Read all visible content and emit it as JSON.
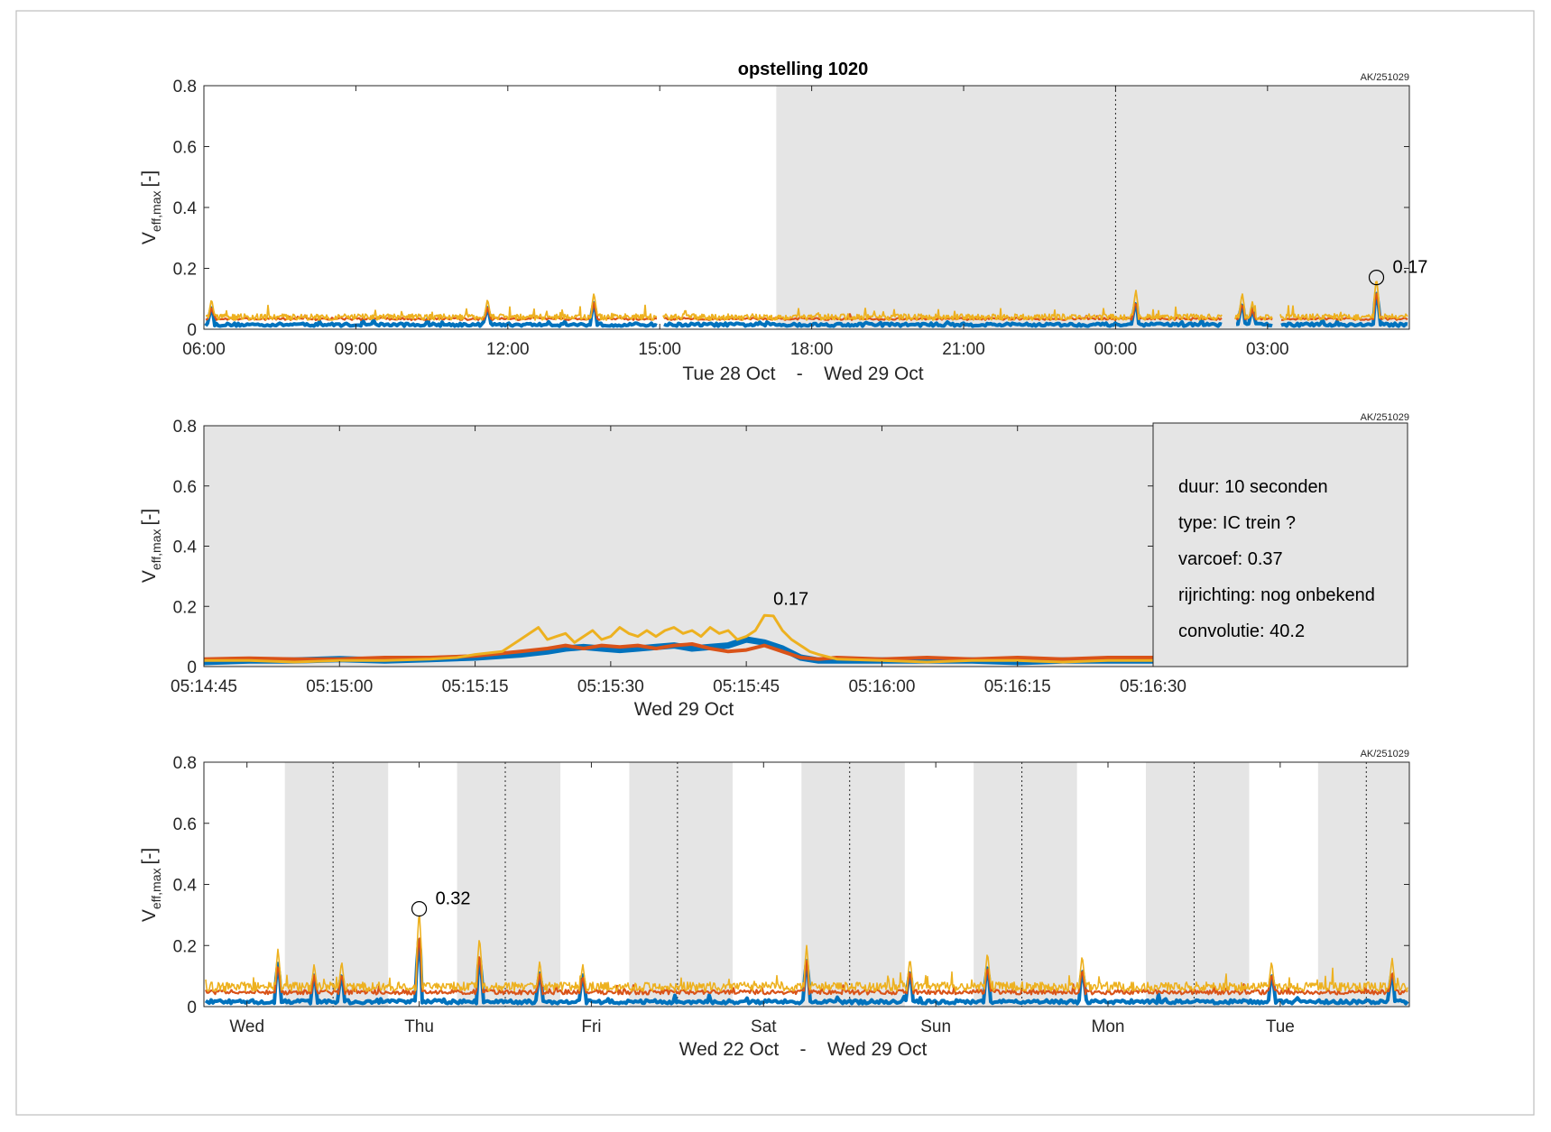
{
  "figure": {
    "title": "opstelling 1020",
    "ylabel_main": "V",
    "ylabel_sub": "eff,max",
    "ylabel_unit": "[-]",
    "colors": {
      "series1": "#0072BD",
      "series2": "#D95319",
      "series3": "#EDB120",
      "night": "#e5e5e5"
    }
  },
  "chart_data": [
    {
      "type": "line",
      "tag": "AK/251029",
      "xlabel": "Tue 28 Oct    -    Wed 29 Oct",
      "ylim": [
        0,
        0.8
      ],
      "y_ticks": [
        "0",
        "0.2",
        "0.4",
        "0.6",
        "0.8"
      ],
      "x_ticks": [
        "06:00",
        "09:00",
        "12:00",
        "15:00",
        "18:00",
        "21:00",
        "00:00",
        "03:00"
      ],
      "x_range_hours": [
        6.0,
        29.8
      ],
      "night_period_hours": [
        17.3,
        29.8
      ],
      "midnight_hours": [
        24.0
      ],
      "gaps_hours": [
        [
          14.95,
          15.05
        ],
        [
          26.1,
          26.35
        ],
        [
          27.1,
          27.25
        ]
      ],
      "baseline": {
        "series1": 0.01,
        "series2": 0.03,
        "series3": 0.03
      },
      "peaks": [
        {
          "x": 6.15,
          "y": 0.1
        },
        {
          "x": 11.6,
          "y": 0.1
        },
        {
          "x": 13.7,
          "y": 0.12
        },
        {
          "x": 24.4,
          "y": 0.13
        },
        {
          "x": 26.5,
          "y": 0.12
        },
        {
          "x": 26.7,
          "y": 0.09
        },
        {
          "x": 29.15,
          "y": 0.17
        }
      ],
      "marker": {
        "x": 29.15,
        "y": 0.17,
        "label": "0.17"
      }
    },
    {
      "type": "line",
      "tag": "AK/251029",
      "xlabel": "Wed 29 Oct",
      "ylim": [
        0,
        0.8
      ],
      "y_ticks": [
        "0",
        "0.2",
        "0.4",
        "0.6",
        "0.8"
      ],
      "x_ticks": [
        "05:14:45",
        "05:15:00",
        "05:15:15",
        "05:15:30",
        "05:15:45",
        "05:16:00",
        "05:16:15",
        "05:16:30"
      ],
      "x_range_seconds": [
        0,
        105
      ],
      "series": [
        {
          "name": "",
          "color": "series1",
          "x": [
            0,
            5,
            10,
            15,
            20,
            25,
            30,
            35,
            38,
            40,
            42,
            44,
            46,
            48,
            50,
            52,
            54,
            56,
            58,
            60,
            62,
            64,
            66,
            68,
            70,
            75,
            80,
            85,
            90,
            95,
            100,
            105
          ],
          "y": [
            0.015,
            0.02,
            0.02,
            0.025,
            0.02,
            0.025,
            0.03,
            0.04,
            0.05,
            0.06,
            0.065,
            0.06,
            0.055,
            0.06,
            0.065,
            0.07,
            0.06,
            0.065,
            0.07,
            0.09,
            0.08,
            0.06,
            0.03,
            0.02,
            0.02,
            0.02,
            0.02,
            0.02,
            0.015,
            0.02,
            0.02,
            0.02
          ]
        },
        {
          "name": "",
          "color": "series2",
          "x": [
            0,
            5,
            10,
            15,
            20,
            25,
            30,
            35,
            38,
            40,
            42,
            44,
            46,
            48,
            50,
            52,
            54,
            56,
            58,
            60,
            62,
            64,
            66,
            68,
            70,
            75,
            80,
            85,
            90,
            95,
            100,
            105
          ],
          "y": [
            0.025,
            0.028,
            0.025,
            0.025,
            0.03,
            0.03,
            0.035,
            0.05,
            0.06,
            0.07,
            0.06,
            0.07,
            0.065,
            0.07,
            0.06,
            0.07,
            0.075,
            0.06,
            0.05,
            0.055,
            0.07,
            0.05,
            0.03,
            0.025,
            0.03,
            0.025,
            0.03,
            0.025,
            0.03,
            0.025,
            0.03,
            0.03
          ]
        },
        {
          "name": "",
          "color": "series3",
          "x": [
            0,
            5,
            10,
            15,
            20,
            25,
            28,
            30,
            33,
            35,
            37,
            38,
            39,
            40,
            41,
            42,
            43,
            44,
            45,
            46,
            47,
            48,
            49,
            50,
            51,
            52,
            53,
            54,
            55,
            56,
            57,
            58,
            59,
            60,
            61,
            62,
            63,
            64,
            65,
            66,
            67,
            68,
            70,
            75,
            80,
            85,
            90,
            95,
            100,
            105
          ],
          "y": [
            0.02,
            0.02,
            0.015,
            0.02,
            0.02,
            0.025,
            0.03,
            0.04,
            0.05,
            0.09,
            0.13,
            0.09,
            0.1,
            0.11,
            0.08,
            0.1,
            0.12,
            0.09,
            0.1,
            0.13,
            0.11,
            0.1,
            0.12,
            0.1,
            0.12,
            0.13,
            0.11,
            0.12,
            0.1,
            0.13,
            0.11,
            0.12,
            0.09,
            0.1,
            0.12,
            0.17,
            0.168,
            0.12,
            0.09,
            0.07,
            0.05,
            0.04,
            0.025,
            0.02,
            0.015,
            0.02,
            0.02,
            0.015,
            0.02,
            0.02
          ]
        }
      ],
      "marker": {
        "x": 62,
        "y": 0.17,
        "label": "0.17"
      },
      "info": [
        "duur: 10 seconden",
        "type: IC trein ?",
        "varcoef: 0.37",
        "rijrichting: nog onbekend",
        "convolutie: 40.2"
      ]
    },
    {
      "type": "line",
      "tag": "AK/251029",
      "xlabel": "Wed 22 Oct    -    Wed 29 Oct",
      "ylim": [
        0,
        0.8
      ],
      "y_ticks": [
        "0",
        "0.2",
        "0.4",
        "0.6",
        "0.8"
      ],
      "x_ticks": [
        "Wed",
        "Thu",
        "Fri",
        "Sat",
        "Sun",
        "Mon",
        "Tue"
      ],
      "x_tick_pos_days": [
        0.25,
        1.25,
        2.25,
        3.25,
        4.25,
        5.25,
        6.25
      ],
      "x_range_days": [
        0.0,
        7.0
      ],
      "night_periods_days": [
        [
          0.47,
          1.07
        ],
        [
          1.47,
          2.07
        ],
        [
          2.47,
          3.07
        ],
        [
          3.47,
          4.07
        ],
        [
          4.47,
          5.07
        ],
        [
          5.47,
          6.07
        ],
        [
          6.47,
          7.0
        ]
      ],
      "midnight_days": [
        0.75,
        1.75,
        2.75,
        3.75,
        4.75,
        5.75,
        6.75
      ],
      "baseline": {
        "series1": 0.01,
        "series2": 0.04,
        "series3": 0.05
      },
      "peaks": [
        {
          "x": 0.43,
          "y": 0.19
        },
        {
          "x": 0.64,
          "y": 0.14
        },
        {
          "x": 0.8,
          "y": 0.15
        },
        {
          "x": 1.25,
          "y": 0.32
        },
        {
          "x": 1.6,
          "y": 0.23
        },
        {
          "x": 1.95,
          "y": 0.15
        },
        {
          "x": 2.2,
          "y": 0.14
        },
        {
          "x": 3.5,
          "y": 0.2
        },
        {
          "x": 4.1,
          "y": 0.16
        },
        {
          "x": 4.55,
          "y": 0.18
        },
        {
          "x": 5.1,
          "y": 0.17
        },
        {
          "x": 6.2,
          "y": 0.15
        },
        {
          "x": 6.9,
          "y": 0.16
        }
      ],
      "marker": {
        "x": 1.25,
        "y": 0.32,
        "label": "0.32"
      }
    }
  ]
}
